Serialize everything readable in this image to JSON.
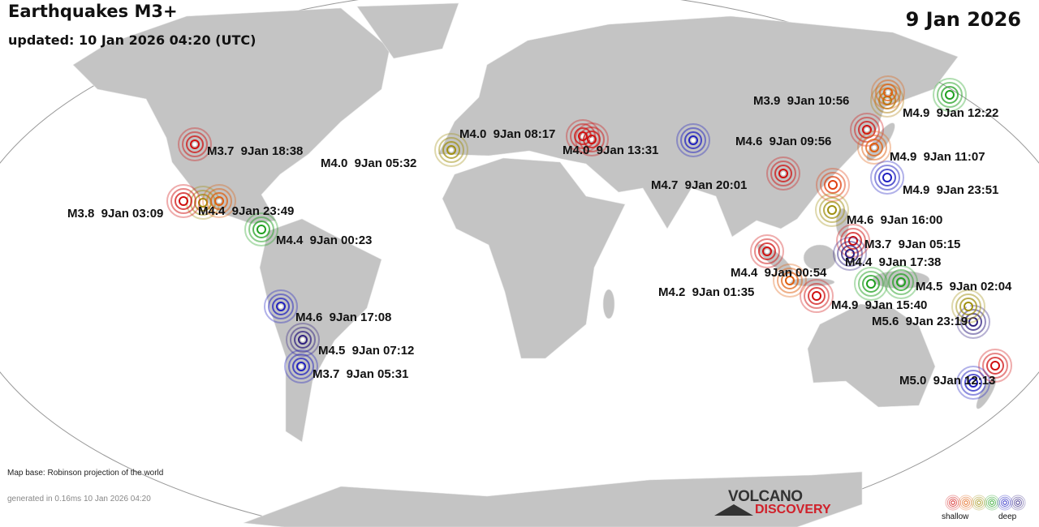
{
  "header": {
    "title": "Earthquakes M3+",
    "updated": "updated: 10 Jan 2026 04:20 (UTC)",
    "date": "9 Jan 2026"
  },
  "depth_colors": [
    "#d01010",
    "#e06010",
    "#a09010",
    "#20a020",
    "#2020c0",
    "#302080"
  ],
  "quakes": [
    {
      "label": "M3.7  9Jan 18:38",
      "depth": "shallow",
      "color": "#d01010"
    },
    {
      "label": "M4.0  9Jan 05:32",
      "depth": "intermediate",
      "color": "#a09010"
    },
    {
      "label": "M4.0  9Jan 08:17",
      "depth": "shallow",
      "color": "#d01010"
    },
    {
      "label": "M4.0  9Jan 13:31",
      "depth": "shallow",
      "color": "#d01010"
    },
    {
      "label": "M4.6  9Jan 09:56",
      "depth": "deep",
      "color": "#2020c0"
    },
    {
      "label": "M3.9  9Jan 10:56",
      "depth": "shallow",
      "color": "#e06010"
    },
    {
      "label": "M4.9  9Jan 12:22",
      "depth": "intermediate",
      "color": "#20a020"
    },
    {
      "label": "M4.9  9Jan 11:07",
      "depth": "shallow",
      "color": "#e06010"
    },
    {
      "label": "M4.9  9Jan 23:51",
      "depth": "deep",
      "color": "#2020c0"
    },
    {
      "label": "M4.7  9Jan 20:01",
      "depth": "shallow",
      "color": "#d01010"
    },
    {
      "label": "M4.6  9Jan 16:00",
      "depth": "intermediate",
      "color": "#a09010"
    },
    {
      "label": "M3.7  9Jan 05:15",
      "depth": "shallow",
      "color": "#d01010"
    },
    {
      "label": "M4.4  9Jan 00:54",
      "depth": "deep",
      "color": "#302080"
    },
    {
      "label": "M4.4  9Jan 17:38",
      "depth": "intermediate",
      "color": "#20a020"
    },
    {
      "label": "M4.5  9Jan 02:04",
      "depth": "intermediate",
      "color": "#20a020"
    },
    {
      "label": "M4.2  9Jan 01:35",
      "depth": "shallow",
      "color": "#e06010"
    },
    {
      "label": "M4.9  9Jan 15:40",
      "depth": "shallow",
      "color": "#d01010"
    },
    {
      "label": "M5.6  9Jan 23:19",
      "depth": "intermediate",
      "color": "#a09010"
    },
    {
      "label": "M5.0  9Jan 12:13",
      "depth": "deep",
      "color": "#2020c0"
    },
    {
      "label": "M3.8  9Jan 03:09",
      "depth": "shallow",
      "color": "#d01010"
    },
    {
      "label": "M4.4  9Jan 23:49",
      "depth": "shallow",
      "color": "#e06010"
    },
    {
      "label": "M4.4  9Jan 00:23",
      "depth": "intermediate",
      "color": "#20a020"
    },
    {
      "label": "M4.6  9Jan 17:08",
      "depth": "deep",
      "color": "#2020c0"
    },
    {
      "label": "M4.5  9Jan 07:12",
      "depth": "deep",
      "color": "#302080"
    },
    {
      "label": "M3.7  9Jan 05:31",
      "depth": "deep",
      "color": "#2020c0"
    }
  ],
  "footer": {
    "map_base": "Map base: Robinson projection of the world",
    "generated": "generated in 0.16ms 10 Jan 2026 04:20",
    "logo_line1": "VOLCANO",
    "logo_line2": "DISCOVERY",
    "legend_shallow": "shallow",
    "legend_deep": "deep"
  }
}
